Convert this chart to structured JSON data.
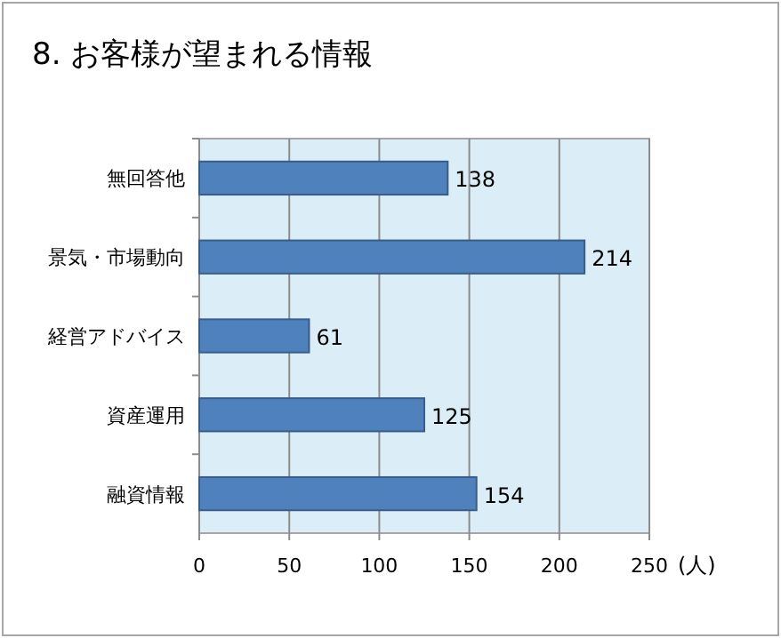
{
  "chart_data": {
    "type": "bar",
    "orientation": "horizontal",
    "title": "8. お客様が望まれる情報",
    "xlabel": "(人)",
    "categories": [
      "無回答他",
      "景気・市場動向",
      "経営アドバイス",
      "資産運用",
      "融資情報"
    ],
    "values": [
      138,
      214,
      61,
      125,
      154
    ],
    "color": "#4f81bd",
    "xlim": [
      0,
      250
    ],
    "xticks": [
      0,
      50,
      100,
      150,
      200,
      250
    ],
    "grid": "x",
    "data_labels": true
  }
}
